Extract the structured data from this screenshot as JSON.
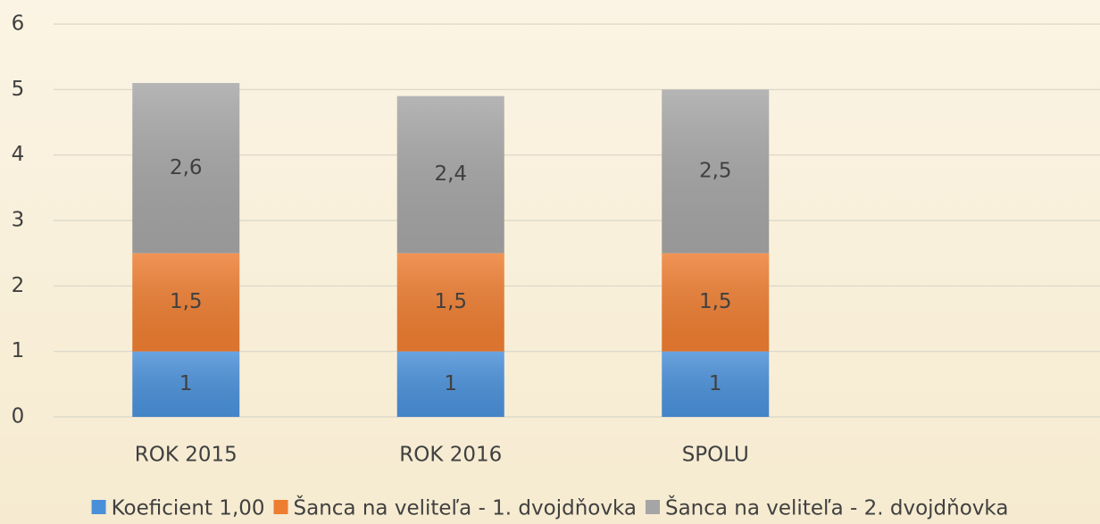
{
  "chart_data": {
    "type": "stacked_bar",
    "categories": [
      "ROK 2015",
      "ROK 2016",
      "SPOLU"
    ],
    "series": [
      {
        "name": "Koeficient 1,00",
        "color": "#4a90d9",
        "values": [
          1,
          1,
          1
        ],
        "value_labels": [
          "1",
          "1",
          "1"
        ]
      },
      {
        "name": "Šanca na veliteľa - 1. dvojdňovka",
        "color": "#ed7d31",
        "values": [
          1.5,
          1.5,
          1.5
        ],
        "value_labels": [
          "1,5",
          "1,5",
          "1,5"
        ]
      },
      {
        "name": "Šanca na veliteľa - 2. dvojdňovka",
        "color": "#a5a5a5",
        "values": [
          2.6,
          2.4,
          2.5
        ],
        "value_labels": [
          "2,6",
          "2,4",
          "2,5"
        ]
      }
    ],
    "ylim": [
      0,
      6
    ],
    "yticks": [
      0,
      1,
      2,
      3,
      4,
      5,
      6
    ],
    "grid": true,
    "legend": "bottom"
  }
}
